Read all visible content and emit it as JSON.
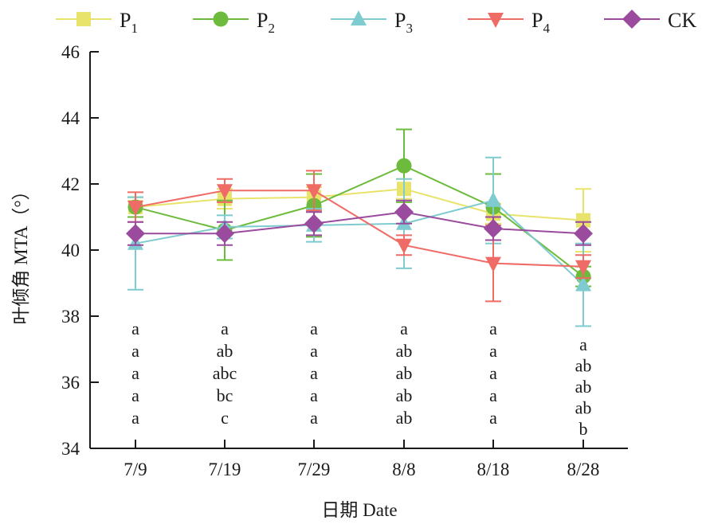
{
  "chart_data": {
    "type": "line",
    "title": "",
    "xlabel": "日期 Date",
    "ylabel": "叶倾角 MTA（°）",
    "ylim": [
      34,
      46
    ],
    "yticks": [
      34,
      36,
      38,
      40,
      42,
      44,
      46
    ],
    "categories": [
      "7/9",
      "7/19",
      "7/29",
      "8/8",
      "8/18",
      "8/28"
    ],
    "legend_position": "top",
    "grid": false,
    "series": [
      {
        "name": "P",
        "sub": "1",
        "color": "#e8e36a",
        "marker": "square",
        "values": [
          41.3,
          41.55,
          41.6,
          41.85,
          41.1,
          40.9
        ],
        "error": [
          0.3,
          0.3,
          0.3,
          0.3,
          0.3,
          0.95
        ]
      },
      {
        "name": "P",
        "sub": "2",
        "color": "#6dbb3c",
        "marker": "circle",
        "values": [
          41.3,
          40.6,
          41.35,
          42.55,
          41.3,
          39.2
        ],
        "error": [
          0.3,
          0.9,
          0.95,
          1.1,
          1.0,
          0.3
        ]
      },
      {
        "name": "P",
        "sub": "3",
        "color": "#7ecbd0",
        "marker": "triangle-up",
        "values": [
          40.2,
          40.7,
          40.75,
          40.8,
          41.5,
          38.95
        ],
        "error": [
          1.4,
          0.35,
          0.5,
          1.35,
          1.3,
          1.25
        ]
      },
      {
        "name": "P",
        "sub": "4",
        "color": "#ef6b66",
        "marker": "triangle-down",
        "values": [
          41.3,
          41.8,
          41.8,
          40.15,
          39.6,
          39.5
        ],
        "error": [
          0.45,
          0.35,
          0.6,
          0.3,
          1.15,
          0.35
        ]
      },
      {
        "name": "CK",
        "sub": "",
        "color": "#9a4b9d",
        "marker": "diamond",
        "values": [
          40.5,
          40.5,
          40.8,
          41.15,
          40.65,
          40.5
        ],
        "error": [
          0.35,
          0.35,
          0.35,
          0.35,
          0.35,
          0.35
        ]
      }
    ],
    "significance_letters": [
      [
        "a",
        "a",
        "a",
        "a",
        "a"
      ],
      [
        "a",
        "ab",
        "abc",
        "bc",
        "c"
      ],
      [
        "a",
        "a",
        "a",
        "a",
        "a"
      ],
      [
        "a",
        "ab",
        "ab",
        "ab",
        "ab"
      ],
      [
        "a",
        "a",
        "a",
        "a",
        "a"
      ],
      [
        "a",
        "ab",
        "ab",
        "ab",
        "b"
      ]
    ]
  }
}
